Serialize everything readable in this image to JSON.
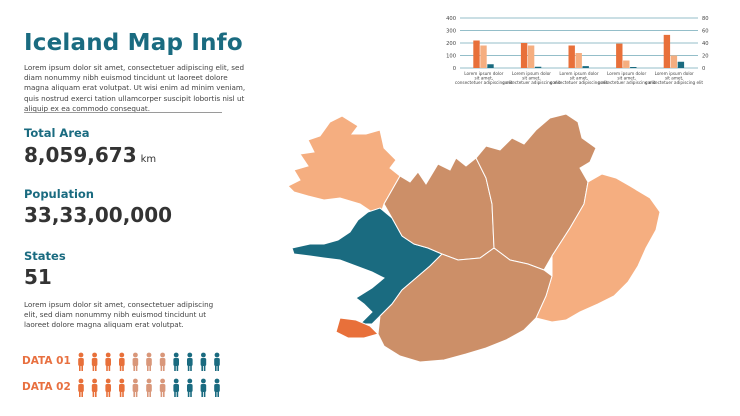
{
  "title": "Iceland Map Info",
  "intro_text": "Lorem ipsum dolor sit amet, consectetuer adipiscing elit, sed diam nonummy nibh euismod tincidunt ut laoreet dolore magna aliquam erat volutpat. Ut wisi enim ad minim veniam, quis nostrud exerci tation ullamcorper suscipit lobortis nisl ut aliquip ex ea commodo consequat.",
  "stats": {
    "total_area": {
      "label": "Total Area",
      "value": "8,059,673",
      "unit": "km"
    },
    "population": {
      "label": "Population",
      "value": "33,33,00,000"
    },
    "states": {
      "label": "States",
      "value": "51"
    }
  },
  "footer_text": "Lorem ipsum dolor sit amet, consectetuer adipiscing elit, sed diam nonummy nibh euismod tincidunt ut laoreet dolore magna aliquam erat volutpat.",
  "data_rows": [
    {
      "label": "DATA 01",
      "colors": [
        "#e8703a",
        "#e8703a",
        "#e8703a",
        "#e8703a",
        "#d9977a",
        "#d9977a",
        "#d9977a",
        "#1a6b80",
        "#1a6b80",
        "#1a6b80",
        "#1a6b80"
      ]
    },
    {
      "label": "DATA 02",
      "colors": [
        "#e8703a",
        "#e8703a",
        "#e8703a",
        "#e8703a",
        "#d9977a",
        "#d9977a",
        "#d9977a",
        "#1a6b80",
        "#1a6b80",
        "#1a6b80",
        "#1a6b80"
      ]
    }
  ],
  "colors": {
    "accent_teal": "#1a6b80",
    "accent_orange": "#e8703a",
    "region_brown": "#cc8f68",
    "region_peach": "#f5ae80",
    "region_teal": "#1a6b80",
    "region_orange": "#e8703a"
  },
  "chart_data": {
    "type": "bar",
    "left_axis": {
      "ylim": [
        0,
        400
      ],
      "ticks": [
        "400",
        "300",
        "200",
        "100",
        "0"
      ]
    },
    "right_axis": {
      "ylim": [
        0,
        80
      ],
      "ticks": [
        "80",
        "60",
        "40",
        "20",
        "0"
      ]
    },
    "categories": [
      "Lorem ipsum dolor sit amet, consectetuer adipiscing elit",
      "Lorem ipsum dolor sit amet, consectetuer adipiscing elit",
      "Lorem ipsum dolor sit amet, consectetuer adipiscing elit",
      "Lorem ipsum dolor sit amet, consectetuer adipiscing elit",
      "Lorem ipsum dolor sit amet, consectetuer adipiscing elit"
    ],
    "series": [
      {
        "values": [
          220,
          200,
          180,
          195,
          265
        ],
        "color": "#e8703a"
      },
      {
        "values": [
          180,
          180,
          120,
          60,
          100
        ],
        "color": "#f5ae80"
      },
      {
        "values": [
          30,
          10,
          15,
          8,
          50
        ],
        "color": "#1a6b80"
      }
    ],
    "grid": true
  }
}
